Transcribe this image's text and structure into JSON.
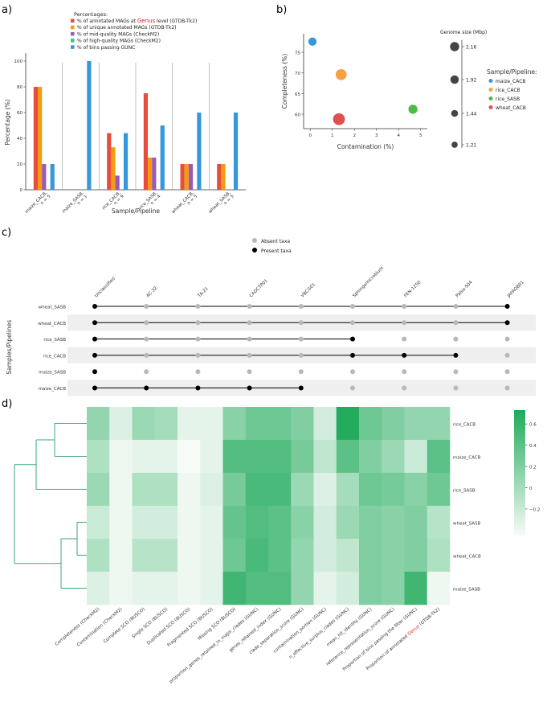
{
  "panel_labels": [
    "a)",
    "b)",
    "c)",
    "d)"
  ],
  "chart_data": [
    {
      "type": "bar",
      "panel": "a)",
      "legend_title": "Percentages:",
      "legend_placement": "top",
      "categories": [
        "maize_CACB,\nn = 5",
        "maize_SASB,\nn = 1",
        "rice_CACB,\nn = 9",
        "rice_SASB,\nn = 4",
        "wheat_CACB,\nn = 5",
        "wheat_SASB,\nn = 5"
      ],
      "series": [
        {
          "name": "% of annotated MAGs at Genus level (GTDB-Tk2)",
          "name_parts": [
            "% of annotated MAGs at ",
            "Genus",
            " level (GTDB-Tk2)"
          ],
          "color": "#e74c3c",
          "values": [
            80,
            0,
            44,
            75,
            20,
            20
          ]
        },
        {
          "name": "% of unique annotated MAGs (GTDB-Tk2)",
          "color": "#f39c12",
          "values": [
            80,
            0,
            33,
            25,
            20,
            20
          ]
        },
        {
          "name": "% of mid-quality MAGs (CheckM2)",
          "color": "#9b59b6",
          "values": [
            20,
            0,
            11,
            25,
            20,
            0
          ]
        },
        {
          "name": "% of high-quality MAGs (CheckM2)",
          "color": "#2ecc71",
          "values": [
            0,
            0,
            0,
            0,
            0,
            0
          ]
        },
        {
          "name": "% of bins passing GUNC",
          "color": "#3498db",
          "values": [
            20,
            100,
            44,
            50,
            60,
            60
          ]
        }
      ],
      "xlabel": "Sample/Pipeline",
      "ylabel": "Percentage (%)",
      "ylim": [
        0,
        105
      ],
      "yticks": [
        0,
        20,
        40,
        60,
        80,
        100
      ]
    },
    {
      "type": "scatter",
      "panel": "b)",
      "xlabel": "Contamination (%)",
      "ylabel": "Completeness (%)",
      "xlim": [
        -0.3,
        5.3
      ],
      "ylim": [
        56.5,
        79.5
      ],
      "xticks": [
        0,
        1,
        2,
        3,
        4,
        5
      ],
      "yticks": [
        60,
        65,
        70,
        75
      ],
      "points": [
        {
          "label": "maize_CACB",
          "x": 0.1,
          "y": 77.6,
          "size": 1.21,
          "color": "#3498db"
        },
        {
          "label": "rice_CACB",
          "x": 1.4,
          "y": 69.6,
          "size": 1.92,
          "color": "#f5a042"
        },
        {
          "label": "rice_SASB",
          "x": 4.65,
          "y": 61.2,
          "size": 1.44,
          "color": "#4cbb47"
        },
        {
          "label": "wheat_CACB",
          "x": 1.3,
          "y": 58.8,
          "size": 2.16,
          "color": "#e05050"
        }
      ],
      "size_legend_title": "Genome size (Mbp)",
      "size_legend": [
        "2.16",
        "1.92",
        "1.44",
        "1.21"
      ],
      "color_legend_title": "Sample/Pipeline:",
      "color_legend": [
        {
          "name": "maize_CACB",
          "color": "#3498db"
        },
        {
          "name": "rice_CACB",
          "color": "#f5a042"
        },
        {
          "name": "rice_SASB",
          "color": "#4cbb47"
        },
        {
          "name": "wheat_CACB",
          "color": "#e05050"
        }
      ]
    },
    {
      "type": "table",
      "panel": "c)",
      "legend": [
        "Absent taxa",
        "Present taxa"
      ],
      "ylabel": "Samples/Pipelines",
      "taxa": [
        "Unclassified",
        "AC-32",
        "TA-21",
        "CADCTP01",
        "VBCG01",
        "Sphingomicrobium",
        "FEN-1250",
        "Palsa-504",
        "JAFAQB01"
      ],
      "highlight_taxon": "Unclassified",
      "rows": [
        {
          "name": "wheat_SASB",
          "present": [
            0,
            8
          ]
        },
        {
          "name": "wheat_CACB",
          "present": [
            0,
            8
          ]
        },
        {
          "name": "rice_SASB",
          "present": [
            0,
            5
          ]
        },
        {
          "name": "rice_CACB",
          "present": [
            0,
            5,
            6,
            7
          ]
        },
        {
          "name": "maize_SASB",
          "present": [
            0
          ]
        },
        {
          "name": "maize_CACB",
          "present": [
            0,
            1,
            2,
            3,
            4
          ]
        }
      ]
    },
    {
      "type": "heatmap",
      "panel": "d)",
      "columns": [
        "Completeness (CheckM2)",
        "Contamination (CheckM2)",
        "Complete SCO (BUSCO)",
        "Single SCO (BUSCO)",
        "Duplicated SCO (BUSCO)",
        "Fragmented SCO (BUSCO)",
        "Missing SCO (BUSCO)",
        "proportion_genes_retained_in_major_clades (GUNC)",
        "genes_retained_index (GUNC)",
        "clade_separation_score (GUNC)",
        "contamination_portion (GUNC)",
        "n_effective_surplus_clades (GUNC)",
        "mean_hit_identity (GUNC)",
        "reference_representation_score (GUNC)",
        "Proportion of bins passing the filter (GUNC)",
        "Proportion of annotated Genus (GTDB-Tk2)"
      ],
      "last_column_parts": [
        "Proportion of annotated ",
        "Genus",
        " (GTDB-Tk2)"
      ],
      "rows": [
        "rice_CACB",
        "maize_CACB",
        "rice_SASB",
        "wheat_SASB",
        "wheat_CACB",
        "maize_SASB"
      ],
      "values": [
        [
          0.1,
          -0.3,
          0.05,
          0.0,
          -0.35,
          -0.35,
          0.15,
          0.3,
          0.3,
          0.2,
          -0.25,
          0.7,
          0.3,
          0.2,
          0.1,
          0.1
        ],
        [
          -0.05,
          -0.4,
          -0.35,
          -0.35,
          -0.45,
          -0.35,
          0.45,
          0.45,
          0.45,
          0.25,
          -0.15,
          0.4,
          0.2,
          0.05,
          -0.2,
          0.4
        ],
        [
          0.05,
          -0.4,
          -0.05,
          -0.05,
          -0.4,
          -0.3,
          0.25,
          0.5,
          0.5,
          0.05,
          -0.3,
          0.0,
          0.3,
          0.25,
          0.15,
          0.3
        ],
        [
          -0.2,
          -0.4,
          -0.25,
          -0.25,
          -0.4,
          -0.35,
          0.35,
          0.45,
          0.4,
          0.15,
          -0.25,
          0.05,
          0.2,
          0.15,
          0.2,
          -0.1
        ],
        [
          -0.05,
          -0.4,
          -0.1,
          -0.1,
          -0.4,
          -0.35,
          0.3,
          0.5,
          0.4,
          0.1,
          -0.25,
          -0.15,
          0.2,
          0.15,
          0.2,
          -0.05
        ],
        [
          -0.3,
          -0.4,
          -0.35,
          -0.35,
          -0.4,
          -0.35,
          0.55,
          0.45,
          0.45,
          0.1,
          -0.35,
          -0.25,
          0.2,
          0.15,
          0.55,
          -0.4
        ]
      ],
      "colorbar_ticks": [
        "0.6",
        "0.4",
        "0.2",
        "0",
        "−0.2"
      ],
      "colorbar_tick_values": [
        0.6,
        0.4,
        0.2,
        0.0,
        -0.2
      ],
      "vmin": -0.45,
      "vmax": 0.73
    }
  ],
  "colors": {
    "navy_text": "#2b4a7a",
    "highlight_red": "#e02020",
    "heat_low": "#f7fbf8",
    "heat_high": "#1faa5a",
    "dendrogram": "#3aa47a",
    "absent_dot": "#b8b8b8",
    "present_dot": "#000000"
  }
}
